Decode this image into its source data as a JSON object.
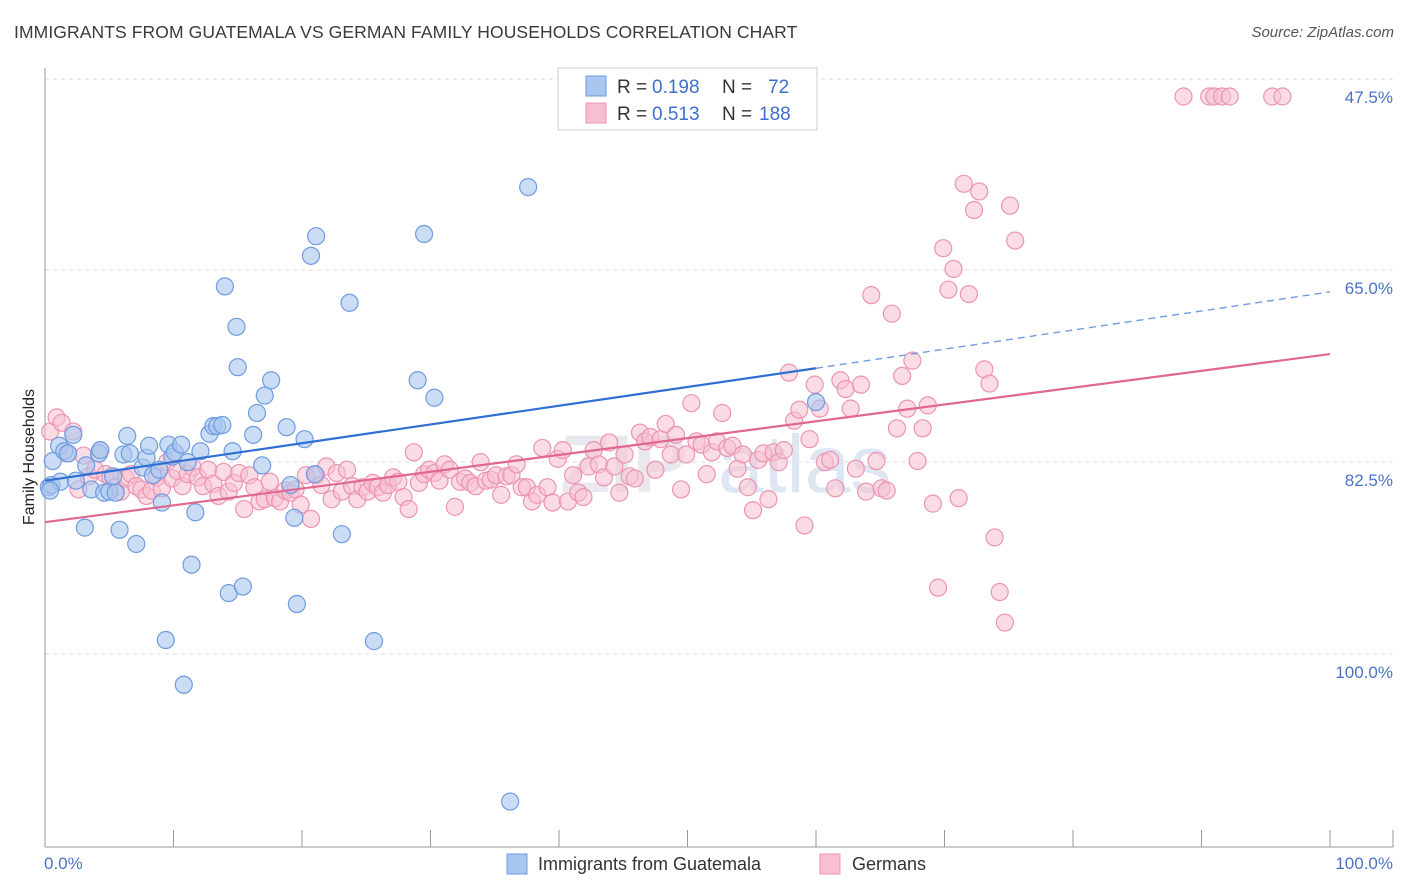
{
  "header": {
    "title": "IMMIGRANTS FROM GUATEMALA VS GERMAN FAMILY HOUSEHOLDS CORRELATION CHART",
    "source": "Source: ZipAtlas.com"
  },
  "watermark": {
    "zip": "ZIP",
    "atlas": "atlas"
  },
  "colors": {
    "blue_fill": "#a9c6ef",
    "blue_stroke": "#6f9be0",
    "blue_line": "#2e6fd1",
    "pink_fill": "#f7bfd0",
    "pink_stroke": "#ec94b1",
    "pink_line": "#e0678f",
    "tick_text": "#4a72c4",
    "grid": "#dddddd"
  },
  "legend": {
    "rows": [
      {
        "r_label": "R = ",
        "r_value": "0.198",
        "n_label": "N = ",
        "n_value": "72"
      },
      {
        "r_label": "R = ",
        "r_value": "0.513",
        "n_label": "N = ",
        "n_value": "188"
      }
    ]
  },
  "bottom_legend": [
    "Immigrants from Guatemala",
    "Germans"
  ],
  "chart_data": {
    "type": "scatter",
    "ylabel": "Family Households",
    "xlim": [
      0,
      100
    ],
    "ylim": [
      31.5,
      104
    ],
    "x_tick_labels": [
      "0.0%",
      "100.0%"
    ],
    "y_ticks": [
      {
        "value": 47.5,
        "label": "47.5%"
      },
      {
        "value": 65.0,
        "label": "65.0%"
      },
      {
        "value": 82.5,
        "label": "82.5%"
      },
      {
        "value": 100.0,
        "label": "100.0%"
      }
    ],
    "grid": true,
    "series": [
      {
        "name": "Immigrants from Guatemala",
        "R": 0.198,
        "N": 72,
        "trend": {
          "x0": 0,
          "y0": 64.8,
          "x1": 60,
          "y1": 75.1,
          "dash_to": 100,
          "dash_y": 82.1
        },
        "points": [
          [
            0.3,
            64.2
          ],
          [
            0.5,
            64.4
          ],
          [
            0.6,
            66.6
          ],
          [
            1.1,
            68.0
          ],
          [
            1.2,
            64.7
          ],
          [
            1.5,
            67.5
          ],
          [
            2.2,
            69.0
          ],
          [
            2.4,
            64.8
          ],
          [
            3.1,
            60.5
          ],
          [
            3.2,
            66.2
          ],
          [
            3.6,
            64.0
          ],
          [
            4.2,
            67.3
          ],
          [
            4.3,
            67.6
          ],
          [
            4.6,
            63.7
          ],
          [
            5.0,
            63.8
          ],
          [
            5.3,
            65.2
          ],
          [
            5.5,
            63.7
          ],
          [
            5.8,
            60.3
          ],
          [
            6.1,
            67.2
          ],
          [
            6.4,
            68.9
          ],
          [
            6.6,
            67.3
          ],
          [
            7.1,
            59.0
          ],
          [
            7.6,
            66.0
          ],
          [
            7.9,
            66.9
          ],
          [
            8.1,
            68.0
          ],
          [
            8.4,
            65.3
          ],
          [
            8.9,
            65.8
          ],
          [
            9.1,
            62.8
          ],
          [
            9.4,
            50.2
          ],
          [
            9.6,
            68.1
          ],
          [
            9.9,
            67.0
          ],
          [
            10.1,
            67.4
          ],
          [
            10.6,
            68.1
          ],
          [
            10.8,
            46.1
          ],
          [
            11.1,
            66.5
          ],
          [
            11.4,
            57.1
          ],
          [
            11.7,
            61.9
          ],
          [
            12.1,
            67.5
          ],
          [
            12.8,
            69.1
          ],
          [
            13.1,
            69.8
          ],
          [
            13.4,
            69.8
          ],
          [
            13.8,
            69.9
          ],
          [
            14.0,
            82.6
          ],
          [
            14.3,
            54.5
          ],
          [
            14.6,
            67.5
          ],
          [
            14.9,
            78.9
          ],
          [
            15.0,
            75.2
          ],
          [
            15.4,
            55.1
          ],
          [
            16.2,
            69.0
          ],
          [
            16.5,
            71.0
          ],
          [
            16.9,
            66.2
          ],
          [
            17.1,
            72.6
          ],
          [
            17.6,
            74.0
          ],
          [
            18.8,
            69.7
          ],
          [
            19.1,
            64.4
          ],
          [
            19.4,
            61.4
          ],
          [
            19.6,
            53.5
          ],
          [
            20.2,
            68.6
          ],
          [
            20.7,
            85.4
          ],
          [
            21.0,
            65.4
          ],
          [
            21.1,
            87.2
          ],
          [
            23.1,
            59.9
          ],
          [
            23.7,
            81.1
          ],
          [
            25.6,
            50.1
          ],
          [
            29.0,
            74.0
          ],
          [
            29.5,
            87.4
          ],
          [
            30.3,
            72.4
          ],
          [
            36.2,
            35.4
          ],
          [
            37.6,
            91.7
          ],
          [
            60.0,
            72.0
          ],
          [
            0.4,
            63.9
          ],
          [
            1.8,
            67.3
          ]
        ]
      },
      {
        "name": "Germans",
        "R": 0.513,
        "N": 188,
        "trend": {
          "x0": 0,
          "y0": 61.0,
          "x1": 100,
          "y1": 76.4
        },
        "points": [
          [
            0.4,
            69.3
          ],
          [
            0.9,
            70.6
          ],
          [
            1.3,
            70.1
          ],
          [
            1.7,
            67.3
          ],
          [
            2.2,
            69.3
          ],
          [
            2.6,
            64.0
          ],
          [
            3.0,
            67.1
          ],
          [
            3.4,
            65.2
          ],
          [
            3.9,
            65.8
          ],
          [
            4.3,
            67.6
          ],
          [
            4.7,
            65.4
          ],
          [
            5.1,
            65.1
          ],
          [
            5.5,
            64.2
          ],
          [
            5.9,
            63.8
          ],
          [
            6.3,
            65.0
          ],
          [
            6.7,
            65.4
          ],
          [
            7.1,
            64.3
          ],
          [
            7.5,
            64.0
          ],
          [
            7.9,
            63.4
          ],
          [
            8.3,
            63.9
          ],
          [
            8.7,
            65.1
          ],
          [
            9.1,
            64.1
          ],
          [
            9.5,
            66.5
          ],
          [
            9.9,
            65.0
          ],
          [
            10.3,
            65.7
          ],
          [
            10.7,
            64.3
          ],
          [
            11.1,
            65.4
          ],
          [
            11.5,
            66.0
          ],
          [
            11.9,
            65.1
          ],
          [
            12.3,
            64.3
          ],
          [
            12.7,
            65.8
          ],
          [
            13.1,
            64.5
          ],
          [
            13.5,
            63.4
          ],
          [
            13.9,
            65.6
          ],
          [
            14.3,
            63.8
          ],
          [
            14.7,
            64.6
          ],
          [
            15.1,
            65.5
          ],
          [
            15.5,
            62.2
          ],
          [
            15.9,
            65.3
          ],
          [
            16.3,
            64.2
          ],
          [
            16.7,
            62.9
          ],
          [
            17.1,
            63.1
          ],
          [
            17.5,
            64.7
          ],
          [
            17.9,
            63.2
          ],
          [
            18.3,
            62.9
          ],
          [
            18.7,
            63.9
          ],
          [
            19.1,
            63.7
          ],
          [
            19.5,
            64.0
          ],
          [
            19.9,
            62.6
          ],
          [
            20.3,
            65.3
          ],
          [
            20.7,
            61.3
          ],
          [
            21.1,
            65.3
          ],
          [
            21.5,
            64.4
          ],
          [
            21.9,
            66.1
          ],
          [
            22.3,
            63.1
          ],
          [
            22.7,
            65.5
          ],
          [
            23.1,
            63.8
          ],
          [
            23.5,
            65.8
          ],
          [
            23.9,
            64.3
          ],
          [
            24.3,
            63.1
          ],
          [
            24.7,
            64.2
          ],
          [
            25.1,
            63.8
          ],
          [
            25.5,
            64.6
          ],
          [
            25.9,
            64.2
          ],
          [
            26.3,
            63.7
          ],
          [
            26.7,
            64.4
          ],
          [
            27.1,
            65.1
          ],
          [
            27.5,
            64.7
          ],
          [
            27.9,
            63.3
          ],
          [
            28.3,
            62.2
          ],
          [
            28.7,
            67.4
          ],
          [
            29.1,
            64.6
          ],
          [
            29.5,
            65.4
          ],
          [
            29.9,
            65.8
          ],
          [
            30.3,
            65.5
          ],
          [
            30.7,
            64.8
          ],
          [
            31.1,
            66.3
          ],
          [
            31.5,
            65.8
          ],
          [
            31.9,
            62.4
          ],
          [
            32.3,
            64.7
          ],
          [
            32.7,
            65.0
          ],
          [
            33.1,
            64.6
          ],
          [
            33.5,
            64.3
          ],
          [
            33.9,
            66.5
          ],
          [
            34.3,
            64.8
          ],
          [
            34.7,
            64.9
          ],
          [
            35.1,
            65.3
          ],
          [
            35.5,
            63.5
          ],
          [
            35.9,
            65.2
          ],
          [
            36.3,
            65.3
          ],
          [
            36.7,
            66.3
          ],
          [
            37.1,
            64.2
          ],
          [
            37.5,
            64.2
          ],
          [
            37.9,
            62.9
          ],
          [
            38.3,
            63.5
          ],
          [
            38.7,
            67.8
          ],
          [
            39.1,
            64.2
          ],
          [
            39.5,
            62.8
          ],
          [
            39.9,
            66.8
          ],
          [
            40.3,
            67.6
          ],
          [
            40.7,
            62.9
          ],
          [
            41.1,
            65.3
          ],
          [
            41.5,
            63.7
          ],
          [
            41.9,
            63.3
          ],
          [
            42.3,
            66.1
          ],
          [
            42.7,
            67.6
          ],
          [
            43.1,
            66.3
          ],
          [
            43.5,
            65.1
          ],
          [
            43.9,
            68.3
          ],
          [
            44.3,
            66.1
          ],
          [
            44.7,
            63.7
          ],
          [
            45.1,
            67.2
          ],
          [
            45.5,
            65.2
          ],
          [
            45.9,
            65.0
          ],
          [
            46.3,
            69.2
          ],
          [
            46.7,
            68.4
          ],
          [
            47.1,
            68.8
          ],
          [
            47.5,
            65.8
          ],
          [
            47.9,
            68.6
          ],
          [
            48.3,
            70.0
          ],
          [
            48.7,
            67.2
          ],
          [
            49.1,
            69.0
          ],
          [
            49.5,
            64.0
          ],
          [
            49.9,
            67.2
          ],
          [
            50.3,
            71.9
          ],
          [
            50.7,
            68.4
          ],
          [
            51.1,
            68.1
          ],
          [
            51.5,
            65.4
          ],
          [
            51.9,
            67.4
          ],
          [
            52.3,
            68.4
          ],
          [
            52.7,
            71.0
          ],
          [
            53.1,
            67.8
          ],
          [
            53.5,
            68.0
          ],
          [
            53.9,
            65.9
          ],
          [
            54.3,
            67.2
          ],
          [
            54.7,
            64.2
          ],
          [
            55.1,
            62.1
          ],
          [
            55.5,
            66.7
          ],
          [
            55.9,
            67.3
          ],
          [
            56.3,
            63.1
          ],
          [
            56.7,
            67.4
          ],
          [
            57.1,
            66.5
          ],
          [
            57.5,
            67.6
          ],
          [
            57.9,
            74.7
          ],
          [
            58.3,
            70.3
          ],
          [
            58.7,
            71.3
          ],
          [
            59.1,
            60.7
          ],
          [
            59.5,
            68.6
          ],
          [
            59.9,
            73.6
          ],
          [
            60.3,
            71.4
          ],
          [
            60.7,
            66.5
          ],
          [
            61.1,
            66.7
          ],
          [
            61.5,
            64.1
          ],
          [
            61.9,
            74.0
          ],
          [
            62.3,
            73.2
          ],
          [
            62.7,
            71.4
          ],
          [
            63.1,
            65.9
          ],
          [
            63.5,
            73.6
          ],
          [
            63.9,
            63.8
          ],
          [
            64.3,
            81.8
          ],
          [
            64.7,
            66.6
          ],
          [
            65.1,
            64.1
          ],
          [
            65.5,
            63.9
          ],
          [
            65.9,
            80.1
          ],
          [
            66.3,
            69.6
          ],
          [
            66.7,
            74.4
          ],
          [
            67.1,
            71.4
          ],
          [
            67.5,
            75.8
          ],
          [
            67.9,
            66.6
          ],
          [
            68.3,
            69.6
          ],
          [
            68.7,
            71.7
          ],
          [
            69.1,
            62.7
          ],
          [
            69.5,
            55.0
          ],
          [
            69.9,
            86.1
          ],
          [
            70.3,
            82.3
          ],
          [
            70.7,
            84.2
          ],
          [
            71.1,
            63.2
          ],
          [
            71.5,
            92.0
          ],
          [
            71.9,
            81.9
          ],
          [
            72.3,
            89.6
          ],
          [
            72.7,
            91.3
          ],
          [
            73.1,
            75.0
          ],
          [
            73.5,
            73.7
          ],
          [
            73.9,
            59.6
          ],
          [
            74.3,
            54.6
          ],
          [
            74.7,
            51.8
          ],
          [
            75.1,
            90.0
          ],
          [
            75.5,
            86.8
          ]
        ]
      },
      {
        "name": "Germans (top cluster)",
        "points": [
          [
            88.6,
            100.0
          ],
          [
            90.6,
            100.0
          ],
          [
            91.0,
            100.0
          ],
          [
            91.6,
            100.0
          ],
          [
            92.2,
            100.0
          ],
          [
            95.5,
            100.0
          ],
          [
            96.3,
            100.0
          ]
        ]
      }
    ]
  }
}
